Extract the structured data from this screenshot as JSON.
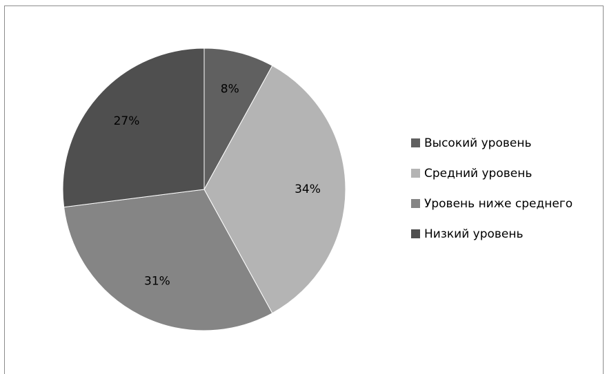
{
  "chart_data": {
    "type": "pie",
    "title": "",
    "slices": [
      {
        "label": "Высокий уровень",
        "value": 8,
        "display": "8%",
        "color": "#606060"
      },
      {
        "label": "Средний уровень",
        "value": 34,
        "display": "34%",
        "color": "#b4b4b4"
      },
      {
        "label": "Уровень ниже среднего",
        "value": 31,
        "display": "31%",
        "color": "#858585"
      },
      {
        "label": "Низкий уровень",
        "value": 27,
        "display": "27%",
        "color": "#4f4f4f"
      }
    ],
    "start_angle_deg": -90,
    "direction": "clockwise",
    "legend_position": "right"
  }
}
